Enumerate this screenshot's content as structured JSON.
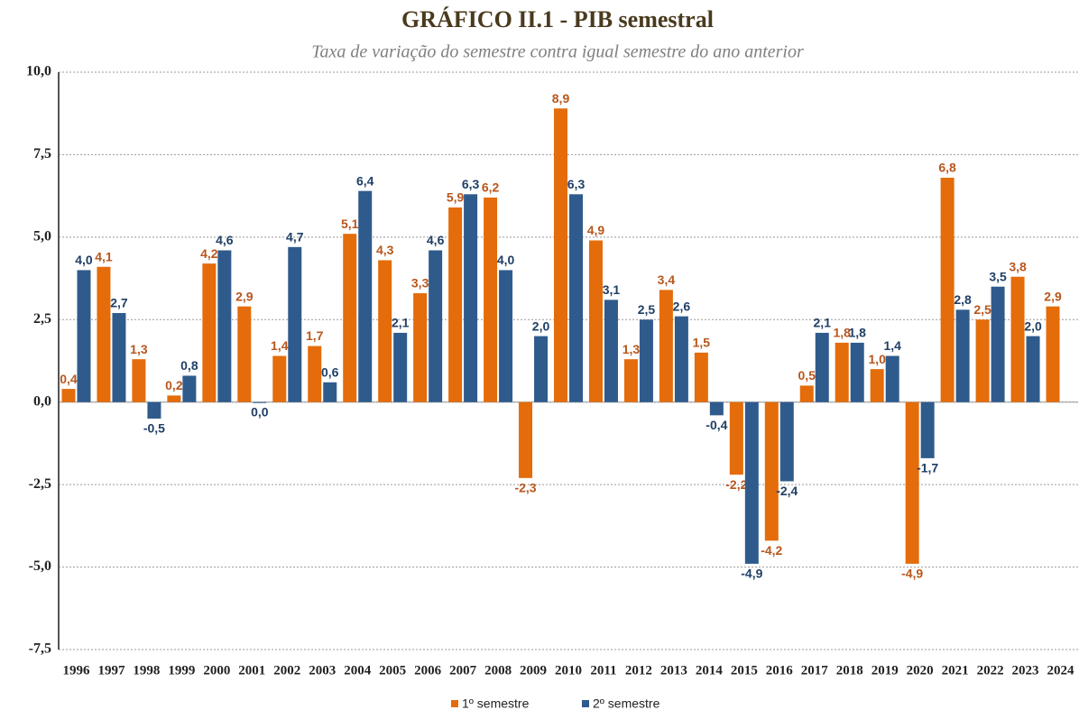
{
  "chart_data": {
    "type": "bar",
    "title": "GRÁFICO II.1 - PIB  semestral",
    "subtitle": "Taxa de variação do semestre contra igual semestre do ano anterior",
    "categories": [
      "1996",
      "1997",
      "1998",
      "1999",
      "2000",
      "2001",
      "2002",
      "2003",
      "2004",
      "2005",
      "2006",
      "2007",
      "2008",
      "2009",
      "2010",
      "2011",
      "2012",
      "2013",
      "2014",
      "2015",
      "2016",
      "2017",
      "2018",
      "2019",
      "2020",
      "2021",
      "2022",
      "2023",
      "2024"
    ],
    "series": [
      {
        "name": "1º semestre",
        "color": "#e46c0a",
        "label_color": "#b8561c",
        "values": [
          0.4,
          4.1,
          1.3,
          0.2,
          4.2,
          2.9,
          1.4,
          1.7,
          5.1,
          4.3,
          3.3,
          5.9,
          6.2,
          -2.3,
          8.9,
          4.9,
          1.3,
          3.4,
          1.5,
          -2.2,
          -4.2,
          0.5,
          1.8,
          1.0,
          -4.9,
          6.8,
          2.5,
          3.8,
          2.9
        ],
        "value_labels": [
          "0,4",
          "4,1",
          "1,3",
          "0,2",
          "4,2",
          "2,9",
          "1,4",
          "1,7",
          "5,1",
          "4,3",
          "3,3",
          "5,9",
          "6,2",
          "-2,3",
          "8,9",
          "4,9",
          "1,3",
          "3,4",
          "1,5",
          "-2,2",
          "-4,2",
          "0,5",
          "1,8",
          "1,0",
          "-4,9",
          "6,8",
          "2,5",
          "3,8",
          "2,9"
        ]
      },
      {
        "name": "2º semestre",
        "color": "#2f5b8c",
        "label_color": "#1f3f66",
        "values": [
          4.0,
          2.7,
          -0.5,
          0.8,
          4.6,
          0.0,
          4.7,
          0.6,
          6.4,
          2.1,
          4.6,
          6.3,
          4.0,
          2.0,
          6.3,
          3.1,
          2.5,
          2.6,
          -0.4,
          -4.9,
          -2.4,
          2.1,
          1.8,
          1.4,
          -1.7,
          2.8,
          3.5,
          2.0,
          null
        ],
        "value_labels": [
          "4,0",
          "2,7",
          "-0,5",
          "0,8",
          "4,6",
          "0,0",
          "4,7",
          "0,6",
          "6,4",
          "2,1",
          "4,6",
          "6,3",
          "4,0",
          "2,0",
          "6,3",
          "3,1",
          "2,5",
          "2,6",
          "-0,4",
          "-4,9",
          "-2,4",
          "2,1",
          "1,8",
          "1,4",
          "-1,7",
          "2,8",
          "3,5",
          "2,0",
          null
        ]
      }
    ],
    "ylim": [
      -7.5,
      10
    ],
    "yticks": [
      {
        "value": -7.5,
        "label": "-7,5"
      },
      {
        "value": -5,
        "label": "-5,0"
      },
      {
        "value": -2.5,
        "label": "-2,5"
      },
      {
        "value": 0,
        "label": "0,0"
      },
      {
        "value": 2.5,
        "label": "2,5"
      },
      {
        "value": 5,
        "label": "5,0"
      },
      {
        "value": 7.5,
        "label": "7,5"
      },
      {
        "value": 10,
        "label": "10,0"
      }
    ],
    "grid": true,
    "legend": "bottom"
  }
}
